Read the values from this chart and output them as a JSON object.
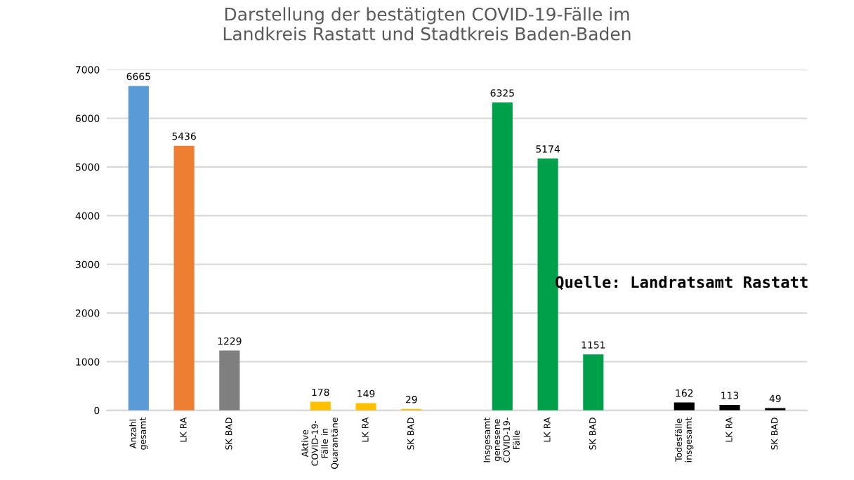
{
  "chart_data": {
    "type": "bar",
    "title": "Darstellung der bestätigten COVID-19-Fälle im\nLandkreis Rastatt und Stadtkreis Baden-Baden",
    "categories": [
      "Anzahl\ngesamt",
      "LK RA",
      "SK BAD",
      null,
      "Aktive\nCOVID-19-\nFälle in\nQuarantäne",
      "LK RA",
      "SK BAD",
      null,
      "Insgesamt\ngenesene\nCOVID-19-\nFälle",
      "LK RA",
      "SK BAD",
      null,
      "Todesfälle\ninsgesamt",
      "LK RA",
      "SK BAD"
    ],
    "values": [
      6665,
      5436,
      1229,
      null,
      178,
      149,
      29,
      null,
      6325,
      5174,
      1151,
      null,
      162,
      113,
      49
    ],
    "colors": [
      "#5b9bd5",
      "#ed7d31",
      "#7f7f7f",
      null,
      "#ffc000",
      "#ffc000",
      "#ffc000",
      null,
      "#00a04a",
      "#00a04a",
      "#00a04a",
      null,
      "#000000",
      "#000000",
      "#000000"
    ],
    "data_labels": true,
    "ylim": [
      0,
      7000
    ],
    "yticks": [
      0,
      1000,
      2000,
      3000,
      4000,
      5000,
      6000,
      7000
    ],
    "grid": "y",
    "annotations": [
      "Quelle: Landratsamt Rastatt"
    ]
  }
}
